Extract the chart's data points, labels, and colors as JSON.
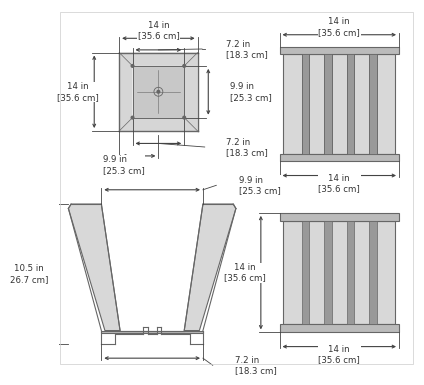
{
  "bg_color": "#ffffff",
  "line_color": "#666666",
  "dim_color": "#444444",
  "text_color": "#333333",
  "gray_light": "#d8d8d8",
  "gray_mid": "#bbbbbb",
  "gray_dark": "#999999",
  "dims": {
    "tl_top": "14 in\n[35.6 cm]",
    "tl_inner_top": "7.2 in\n[18.3 cm]",
    "tl_left": "14 in\n[35.6 cm]",
    "tl_inner_right": "9.9 in\n[25.3 cm]",
    "tl_inner_bot": "7.2 in\n[18.3 cm]",
    "tl_bot_left": "9.9 in\n[25.3 cm]",
    "tr_top": "14 in\n[35.6 cm]",
    "tr_bot": "14 in\n[35.6 cm]",
    "bl_top": "9.9 in\n[25.3 cm]",
    "bl_left": "10.5 in\n26.7 cm]",
    "bl_bot": "7.2 in\n[18.3 cm]",
    "br_left": "14 in\n[35.6 cm]",
    "br_bot": "14 in\n[35.6 cm]"
  }
}
